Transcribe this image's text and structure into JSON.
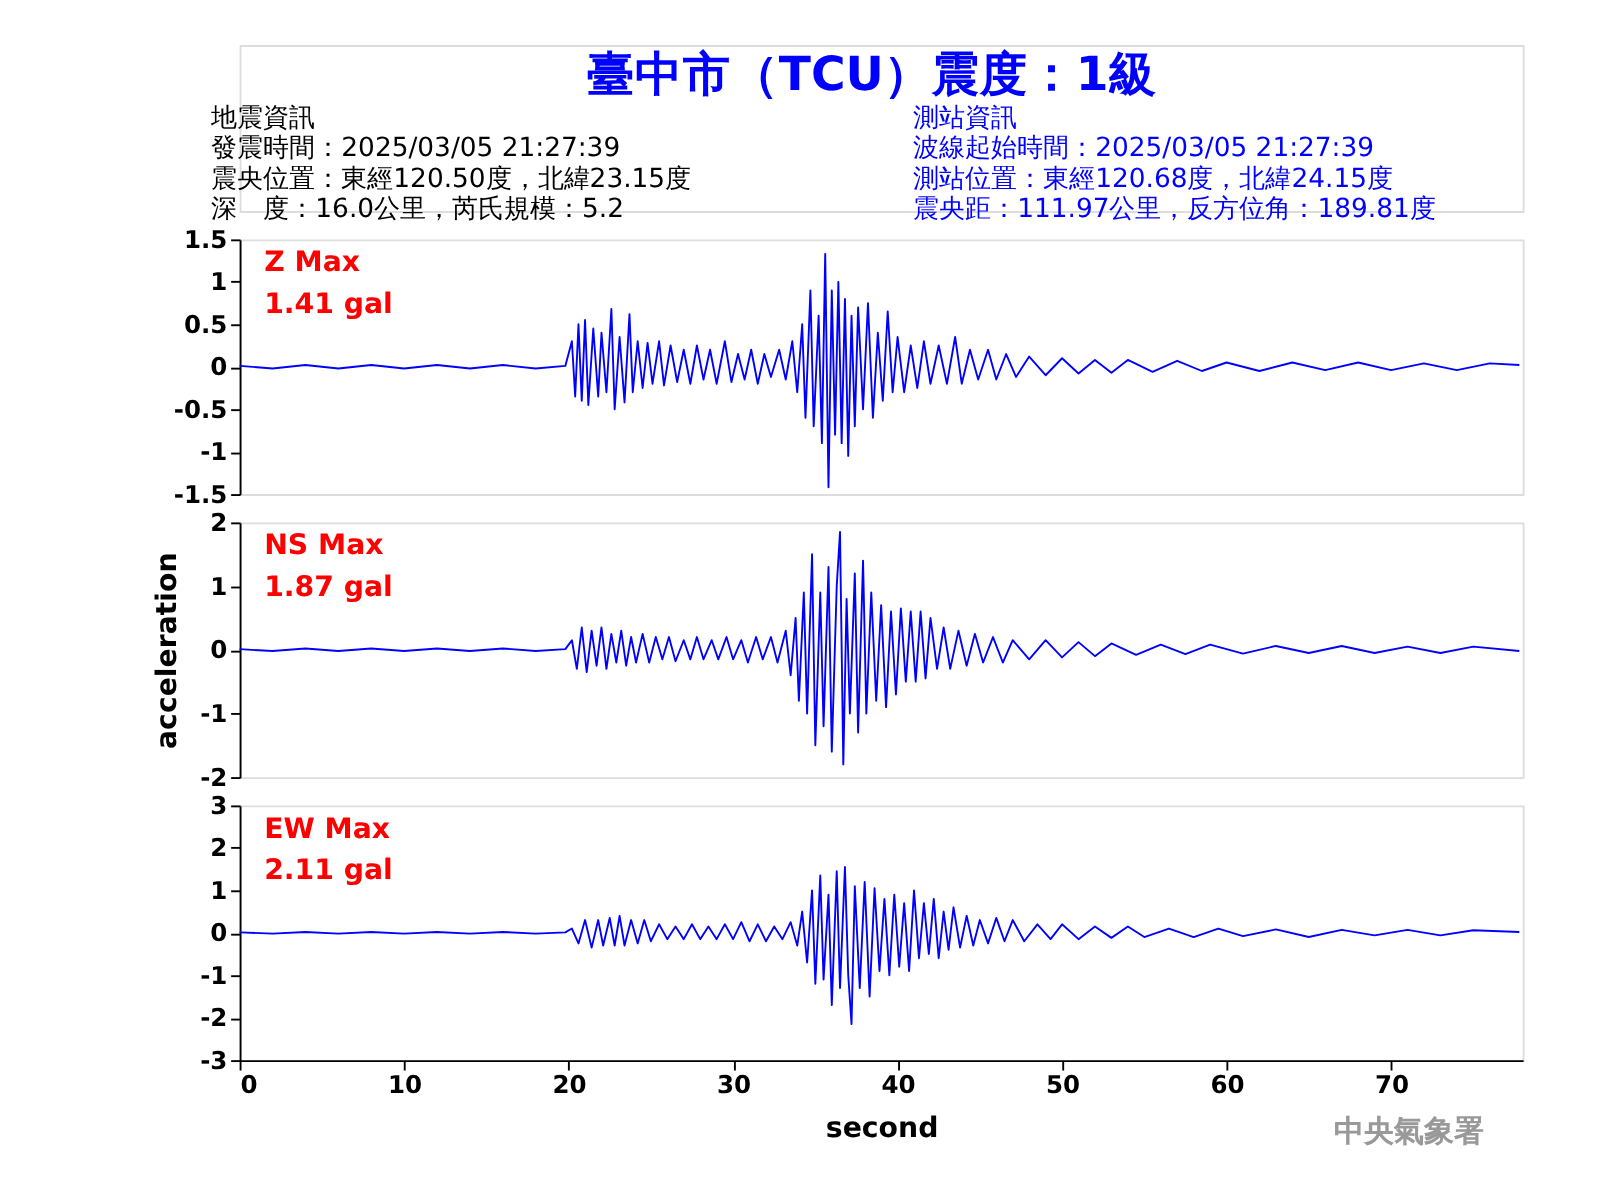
{
  "chart_data": [
    {
      "type": "line",
      "title": "臺中市（TCU）震度：1級",
      "color": "#0000ff",
      "annotations": [
        "Z Max",
        "1.41 gal",
        "地震資訊",
        "發震時間：2025/03/05 21:27:39",
        "震央位置：東經120.50度，北緯23.15度",
        "深　度：16.0公里，芮氏規模：5.2",
        "測站資訊",
        "波線起始時間：2025/03/05 21:27:39",
        "測站位置：東經120.68度，北緯24.15度",
        "震央距：111.97公里，反方位角：189.81度"
      ],
      "x": [
        0,
        2,
        4,
        6,
        8,
        10,
        12,
        14,
        16,
        18,
        19.8,
        20.2,
        20.4,
        20.6,
        20.8,
        21.0,
        21.2,
        21.5,
        21.8,
        22.0,
        22.3,
        22.6,
        22.8,
        23.1,
        23.4,
        23.7,
        23.9,
        24.2,
        24.5,
        24.8,
        25.1,
        25.5,
        25.8,
        26.2,
        26.6,
        27.0,
        27.4,
        27.8,
        28.2,
        28.6,
        29.0,
        29.5,
        29.9,
        30.3,
        30.7,
        31.1,
        31.5,
        31.9,
        32.3,
        32.8,
        33.2,
        33.6,
        33.9,
        34.2,
        34.4,
        34.7,
        34.9,
        35.2,
        35.4,
        35.6,
        35.8,
        36.0,
        36.2,
        36.4,
        36.6,
        36.8,
        37.0,
        37.2,
        37.4,
        37.6,
        37.9,
        38.2,
        38.5,
        38.8,
        39.1,
        39.4,
        39.7,
        40.0,
        40.4,
        40.8,
        41.2,
        41.6,
        42.0,
        42.5,
        43.0,
        43.5,
        43.9,
        44.4,
        44.9,
        45.5,
        46.0,
        46.6,
        47.2,
        48,
        49,
        50,
        51,
        52,
        53,
        54,
        55.5,
        57,
        58.5,
        60,
        62,
        64,
        66,
        68,
        70,
        72,
        74,
        76,
        77.8
      ],
      "values": [
        0.01,
        -0.02,
        0.02,
        -0.02,
        0.02,
        -0.02,
        0.02,
        -0.02,
        0.02,
        -0.02,
        0.01,
        0.3,
        -0.35,
        0.5,
        -0.4,
        0.55,
        -0.45,
        0.45,
        -0.35,
        0.4,
        -0.3,
        0.68,
        -0.5,
        0.35,
        -0.42,
        0.62,
        -0.3,
        0.3,
        -0.25,
        0.28,
        -0.2,
        0.3,
        -0.22,
        0.25,
        -0.18,
        0.2,
        -0.2,
        0.25,
        -0.15,
        0.2,
        -0.2,
        0.3,
        -0.18,
        0.15,
        -0.15,
        0.2,
        -0.2,
        0.15,
        -0.12,
        0.2,
        -0.15,
        0.3,
        -0.3,
        0.5,
        -0.6,
        0.9,
        -0.7,
        0.6,
        -0.9,
        1.33,
        -1.42,
        0.9,
        -0.8,
        1.0,
        -0.9,
        0.8,
        -1.05,
        0.6,
        -0.7,
        0.7,
        -0.5,
        0.75,
        -0.6,
        0.4,
        -0.4,
        0.65,
        -0.3,
        0.35,
        -0.3,
        0.25,
        -0.25,
        0.3,
        -0.2,
        0.25,
        -0.2,
        0.35,
        -0.2,
        0.2,
        -0.15,
        0.2,
        -0.15,
        0.15,
        -0.12,
        0.12,
        -0.1,
        0.1,
        -0.08,
        0.08,
        -0.07,
        0.08,
        -0.06,
        0.07,
        -0.05,
        0.05,
        -0.05,
        0.05,
        -0.04,
        0.05,
        -0.04,
        0.04,
        -0.04,
        0.04,
        0.02
      ],
      "xlim": [
        0,
        78
      ],
      "ylim": [
        -1.5,
        1.5
      ],
      "yticks": [
        -1.5,
        -1,
        -0.5,
        0,
        0.5,
        1,
        1.5
      ],
      "tick_labels": "y"
    },
    {
      "type": "line",
      "ylabel": "acceleration",
      "color": "#0000ff",
      "annotations": [
        "NS Max",
        "1.87 gal"
      ],
      "x": [
        0,
        2,
        4,
        6,
        8,
        10,
        12,
        14,
        16,
        18,
        19.8,
        20.2,
        20.5,
        20.8,
        21.1,
        21.4,
        21.7,
        22.0,
        22.3,
        22.6,
        22.9,
        23.2,
        23.5,
        23.8,
        24.1,
        24.5,
        24.9,
        25.3,
        25.7,
        26.1,
        26.5,
        27.0,
        27.4,
        27.8,
        28.2,
        28.7,
        29.1,
        29.6,
        30.0,
        30.5,
        30.9,
        31.4,
        31.8,
        32.3,
        32.7,
        33.2,
        33.5,
        33.8,
        34.0,
        34.3,
        34.5,
        34.8,
        35.0,
        35.3,
        35.5,
        35.8,
        36.0,
        36.3,
        36.5,
        36.7,
        36.9,
        37.1,
        37.4,
        37.6,
        37.9,
        38.1,
        38.4,
        38.7,
        39.0,
        39.3,
        39.6,
        39.9,
        40.2,
        40.5,
        40.8,
        41.1,
        41.4,
        41.7,
        42.0,
        42.4,
        42.8,
        43.2,
        43.7,
        44.2,
        44.7,
        45.2,
        45.8,
        46.4,
        47,
        48,
        49,
        50,
        51,
        52,
        53,
        54.5,
        56,
        57.5,
        59,
        61,
        63,
        65,
        67,
        69,
        71,
        73,
        75,
        77.8
      ],
      "values": [
        0.01,
        -0.02,
        0.02,
        -0.02,
        0.02,
        -0.02,
        0.02,
        -0.02,
        0.02,
        -0.02,
        0.01,
        0.15,
        -0.3,
        0.35,
        -0.35,
        0.3,
        -0.25,
        0.35,
        -0.3,
        0.25,
        -0.2,
        0.3,
        -0.25,
        0.2,
        -0.2,
        0.25,
        -0.2,
        0.2,
        -0.15,
        0.2,
        -0.18,
        0.15,
        -0.15,
        0.2,
        -0.15,
        0.15,
        -0.15,
        0.2,
        -0.15,
        0.15,
        -0.2,
        0.2,
        -0.15,
        0.2,
        -0.2,
        0.3,
        -0.4,
        0.5,
        -0.8,
        0.9,
        -1.0,
        1.5,
        -1.5,
        0.9,
        -1.2,
        1.3,
        -1.6,
        1.0,
        1.85,
        -1.8,
        0.8,
        -1.0,
        1.2,
        -1.3,
        1.4,
        -1.0,
        0.9,
        -0.8,
        0.7,
        -0.9,
        0.6,
        -0.7,
        0.65,
        -0.5,
        0.6,
        -0.5,
        0.6,
        -0.45,
        0.5,
        -0.3,
        0.35,
        -0.3,
        0.3,
        -0.25,
        0.25,
        -0.2,
        0.2,
        -0.2,
        0.15,
        -0.15,
        0.15,
        -0.12,
        0.12,
        -0.1,
        0.1,
        -0.08,
        0.08,
        -0.07,
        0.08,
        -0.06,
        0.06,
        -0.05,
        0.06,
        -0.05,
        0.05,
        -0.05,
        0.05,
        -0.02
      ],
      "xlim": [
        0,
        78
      ],
      "ylim": [
        -2,
        2
      ],
      "yticks": [
        -2,
        -1,
        0,
        1,
        2
      ],
      "tick_labels": "y"
    },
    {
      "type": "line",
      "xlabel": "second",
      "color": "#0000ff",
      "annotations": [
        "EW Max",
        "2.11 gal",
        "中央氣象署"
      ],
      "x": [
        0,
        2,
        4,
        6,
        8,
        10,
        12,
        14,
        16,
        18,
        19.8,
        20.2,
        20.6,
        21.0,
        21.4,
        21.8,
        22.1,
        22.5,
        22.8,
        23.1,
        23.4,
        23.8,
        24.2,
        24.6,
        25.0,
        25.5,
        26.0,
        26.5,
        27.0,
        27.5,
        28.0,
        28.5,
        29.0,
        29.5,
        30.0,
        30.5,
        31.0,
        31.5,
        32.0,
        32.5,
        33.0,
        33.5,
        33.9,
        34.2,
        34.5,
        34.8,
        35.0,
        35.3,
        35.5,
        35.8,
        36.0,
        36.3,
        36.5,
        36.8,
        37.0,
        37.2,
        37.4,
        37.7,
        38.0,
        38.3,
        38.6,
        38.9,
        39.2,
        39.5,
        39.8,
        40.1,
        40.4,
        40.7,
        41.0,
        41.3,
        41.6,
        41.9,
        42.2,
        42.5,
        42.8,
        43.1,
        43.4,
        43.8,
        44.2,
        44.6,
        45.0,
        45.5,
        46.0,
        46.5,
        47,
        47.7,
        48.5,
        49.3,
        50,
        51,
        52,
        53,
        54,
        55,
        56.5,
        58,
        59.5,
        61,
        63,
        65,
        67,
        69,
        71,
        73,
        75,
        77.8
      ],
      "values": [
        0.01,
        -0.02,
        0.02,
        -0.02,
        0.02,
        -0.02,
        0.02,
        -0.02,
        0.02,
        -0.02,
        0.01,
        0.1,
        -0.25,
        0.3,
        -0.35,
        0.3,
        -0.3,
        0.35,
        -0.3,
        0.4,
        -0.3,
        0.3,
        -0.25,
        0.3,
        -0.2,
        0.2,
        -0.15,
        0.15,
        -0.15,
        0.2,
        -0.15,
        0.15,
        -0.15,
        0.2,
        -0.15,
        0.25,
        -0.2,
        0.2,
        -0.2,
        0.15,
        -0.15,
        0.25,
        -0.3,
        0.5,
        -0.7,
        1.0,
        -1.2,
        1.35,
        -1.1,
        0.9,
        -1.7,
        1.45,
        -1.3,
        1.55,
        -1.0,
        -2.15,
        1.1,
        -1.3,
        1.2,
        -1.5,
        1.05,
        -0.9,
        0.8,
        -1.0,
        0.9,
        -0.8,
        0.7,
        -0.9,
        1.0,
        -0.6,
        0.7,
        -0.5,
        0.8,
        -0.6,
        0.5,
        -0.4,
        0.6,
        -0.35,
        0.4,
        -0.3,
        0.3,
        -0.25,
        0.35,
        -0.2,
        0.3,
        -0.2,
        0.2,
        -0.15,
        0.2,
        -0.15,
        0.15,
        -0.12,
        0.15,
        -0.1,
        0.1,
        -0.1,
        0.1,
        -0.08,
        0.08,
        -0.1,
        0.07,
        -0.06,
        0.07,
        -0.06,
        0.06,
        0.02
      ],
      "xlim": [
        0,
        78
      ],
      "ylim": [
        -3,
        3
      ],
      "yticks": [
        -3,
        -2,
        -1,
        0,
        1,
        2,
        3
      ],
      "xticks": [
        0,
        10,
        20,
        30,
        40,
        50,
        60,
        70
      ]
    }
  ]
}
